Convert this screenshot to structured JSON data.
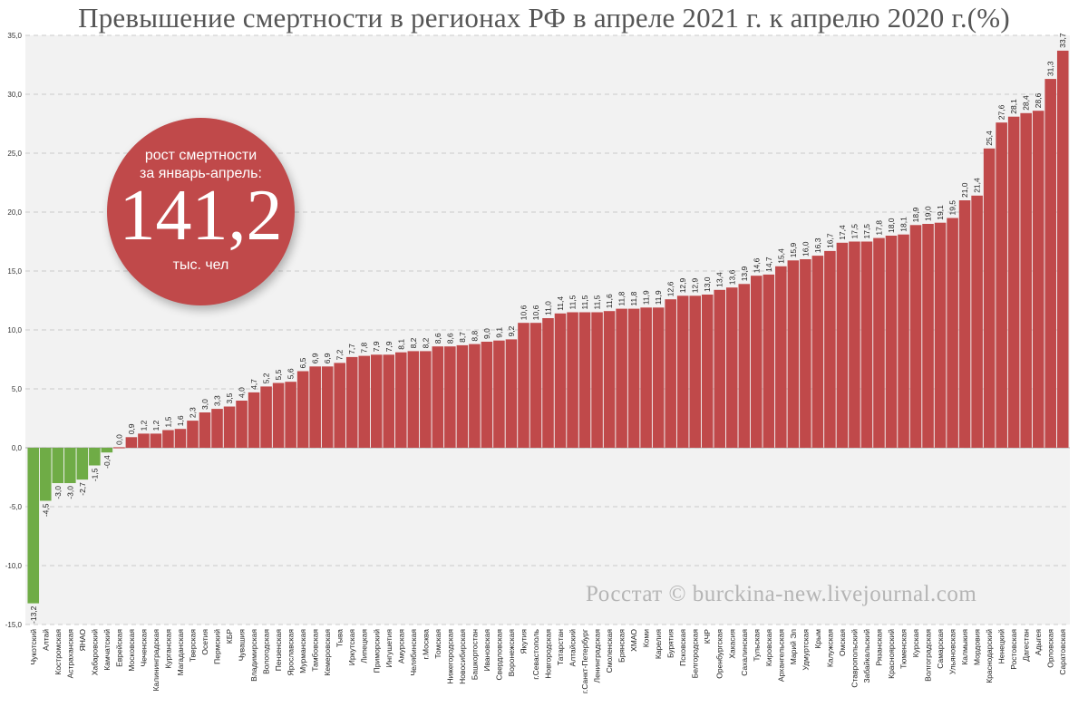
{
  "title": "Превышение смертности в регионах РФ в апреле 2021 г. к апрелю 2020 г.(%)",
  "badge": {
    "line1": "рост смертности",
    "line2": "за январь-апрель:",
    "value": "141,2",
    "unit": "тыс. чел"
  },
  "watermark": "Росстат © burckina-new.livejournal.com",
  "colors": {
    "positive": "#c0494a",
    "negative": "#6fac46",
    "plot_bg": "#f2f2f2",
    "grid": "#bfbfbf",
    "badge": "#c0494a"
  },
  "chart_data": {
    "type": "bar",
    "title": "Превышение смертности в регионах РФ в апреле 2021 г. к апрелю 2020 г.(%)",
    "xlabel": "",
    "ylabel": "",
    "ylim": [
      -15,
      35
    ],
    "yticks": [
      -15,
      -10,
      -5,
      0,
      5,
      10,
      15,
      20,
      25,
      30,
      35
    ],
    "ytick_labels": [
      "-15,0",
      "-10,0",
      "-5,0",
      "0,0",
      "5,0",
      "10,0",
      "15,0",
      "20,0",
      "25,0",
      "30,0",
      "35,0"
    ],
    "grid": true,
    "legend": "none",
    "categories": [
      "Чукотский",
      "Алтай",
      "Костромская",
      "Астраханская",
      "ЯНАО",
      "Хабаровский",
      "Камчатский",
      "Еврейская",
      "Московская",
      "Чеченская",
      "Калининградская",
      "Курганская",
      "Магаданская",
      "Тверская",
      "Осетия",
      "Пермский",
      "КБР",
      "Чувашия",
      "Владимирская",
      "Вологодская",
      "Пензенская",
      "Ярославская",
      "Мурманская",
      "Тамбовская",
      "Кемеровская",
      "Тыва",
      "Иркутская",
      "Липецкая",
      "Приморский",
      "Ингушетия",
      "Амурская",
      "Челябинская",
      "г.Москва",
      "Томская",
      "Нижегородская",
      "Новосибирская",
      "Башкортостан",
      "Ивановская",
      "Свердловская",
      "Воронежская",
      "Якутия",
      "г.Севастополь",
      "Новгородская",
      "Татарстан",
      "Алтайский",
      "г.Санкт-Петербург",
      "Ленинградская",
      "Смоленская",
      "Брянская",
      "ХМАО",
      "Коми",
      "Карелия",
      "Бурятия",
      "Псковская",
      "Белгородская",
      "КЧР",
      "Оренбургская",
      "Хакасия",
      "Сахалинская",
      "Тульская",
      "Кировская",
      "Архангельская",
      "Марий Эл",
      "Удмуртская",
      "Крым",
      "Калужская",
      "Омская",
      "Ставропольский",
      "Забайкальский",
      "Рязанская",
      "Красноярский",
      "Тюменская",
      "Курская",
      "Волгоградская",
      "Самарская",
      "Ульяновская",
      "Калмыкия",
      "Мордовия",
      "Краснодарский",
      "Ненецкий",
      "Ростовская",
      "Дагестан",
      "Адыгея",
      "Орловская",
      "Саратовская"
    ],
    "values": [
      -13.2,
      -4.5,
      -3.0,
      -3.0,
      -2.7,
      -1.5,
      -0.4,
      0.0,
      0.9,
      1.2,
      1.2,
      1.5,
      1.6,
      2.3,
      3.0,
      3.3,
      3.5,
      4.0,
      4.7,
      5.2,
      5.5,
      5.6,
      6.5,
      6.9,
      6.9,
      7.2,
      7.7,
      7.8,
      7.9,
      7.9,
      8.1,
      8.2,
      8.2,
      8.6,
      8.6,
      8.7,
      8.8,
      9.0,
      9.1,
      9.2,
      10.6,
      10.6,
      11.0,
      11.4,
      11.5,
      11.5,
      11.5,
      11.6,
      11.8,
      11.8,
      11.9,
      11.9,
      12.6,
      12.9,
      12.9,
      13.0,
      13.4,
      13.6,
      13.9,
      14.6,
      14.7,
      15.4,
      15.9,
      16.0,
      16.3,
      16.7,
      17.4,
      17.5,
      17.5,
      17.8,
      18.0,
      18.1,
      18.9,
      19.0,
      19.1,
      19.5,
      21.0,
      21.4,
      25.4,
      27.6,
      28.1,
      28.4,
      28.6,
      31.3,
      33.7
    ],
    "value_labels": [
      "-13,2",
      "-4,5",
      "-3,0",
      "-3,0",
      "-2,7",
      "-1,5",
      "-0,4",
      "0,0",
      "0,9",
      "1,2",
      "1,2",
      "1,5",
      "1,6",
      "2,3",
      "3,0",
      "3,3",
      "3,5",
      "4,0",
      "4,7",
      "5,2",
      "5,5",
      "5,6",
      "6,5",
      "6,9",
      "6,9",
      "7,2",
      "7,7",
      "7,8",
      "7,9",
      "7,9",
      "8,1",
      "8,2",
      "8,2",
      "8,6",
      "8,6",
      "8,7",
      "8,8",
      "9,0",
      "9,1",
      "9,2",
      "10,6",
      "10,6",
      "11,0",
      "11,4",
      "11,5",
      "11,5",
      "11,5",
      "11,6",
      "11,8",
      "11,8",
      "11,9",
      "11,9",
      "12,6",
      "12,9",
      "12,9",
      "13,0",
      "13,4",
      "13,6",
      "13,9",
      "14,6",
      "14,7",
      "15,4",
      "15,9",
      "16,0",
      "16,3",
      "16,7",
      "17,4",
      "17,5",
      "17,5",
      "17,8",
      "18,0",
      "18,1",
      "18,9",
      "19,0",
      "19,1",
      "19,5",
      "21,0",
      "21,4",
      "25,4",
      "27,6",
      "28,1",
      "28,4",
      "28,6",
      "31,3",
      "33,7"
    ]
  }
}
